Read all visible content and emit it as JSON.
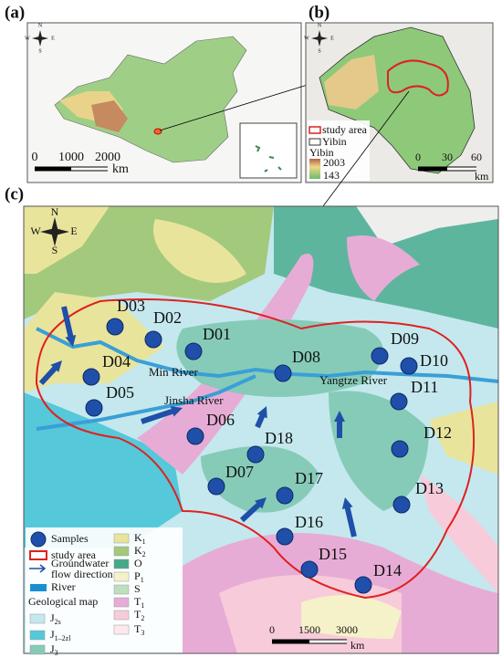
{
  "panel_a": {
    "label": "(a)",
    "compass": [
      "N",
      "E",
      "S",
      "W"
    ],
    "scale": [
      "0",
      "1000",
      "2000"
    ],
    "unit": "km"
  },
  "panel_b": {
    "label": "(b)",
    "compass": [
      "N",
      "E",
      "S",
      "W"
    ],
    "legend": {
      "study_area": "study area",
      "boundary": "Yibin",
      "elevation_title": "Yibin",
      "elevation_max": "2003",
      "elevation_min": "143"
    },
    "scale": [
      "0",
      "30",
      "60"
    ],
    "unit": "km"
  },
  "panel_c": {
    "label": "(c)",
    "compass": [
      "N",
      "E",
      "S",
      "W"
    ],
    "samples": [
      "D01",
      "D02",
      "D03",
      "D04",
      "D05",
      "D06",
      "D07",
      "D08",
      "D09",
      "D10",
      "D11",
      "D12",
      "D13",
      "D14",
      "D15",
      "D16",
      "D17",
      "D18"
    ],
    "rivers": [
      "Min River",
      "Jinsha River",
      "Yangtze River"
    ],
    "legend": {
      "samples": "Samples",
      "study_area": "study area",
      "flow": [
        "Groundwater",
        "flow direction"
      ],
      "river": "River",
      "geo_title": "Geological map",
      "units": [
        {
          "main": "J",
          "sub": "2s",
          "color": "#c4e8ee"
        },
        {
          "main": "J",
          "sub": "1–2zl",
          "color": "#55c8da"
        },
        {
          "main": "J",
          "sub": "3",
          "color": "#86cbb8"
        },
        {
          "main": "K",
          "sub": "1",
          "color": "#e9e49c"
        },
        {
          "main": "K",
          "sub": "2",
          "color": "#a3c97c"
        },
        {
          "main": "O",
          "sub": "",
          "color": "#45a88a"
        },
        {
          "main": "P",
          "sub": "1",
          "color": "#f5f1c9"
        },
        {
          "main": "S",
          "sub": "",
          "color": "#bddfbd"
        },
        {
          "main": "T",
          "sub": "1",
          "color": "#e7acd5"
        },
        {
          "main": "T",
          "sub": "2",
          "color": "#f7cbda"
        },
        {
          "main": "T",
          "sub": "3",
          "color": "#fde9ec"
        }
      ]
    },
    "scale": [
      "0",
      "1500",
      "3000"
    ],
    "unit": "km"
  }
}
